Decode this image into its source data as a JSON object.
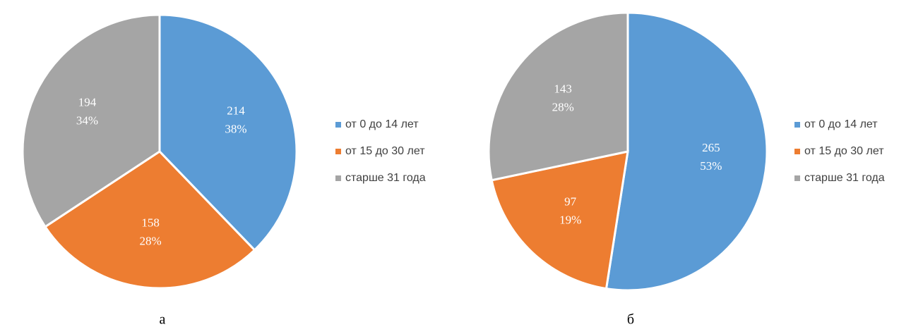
{
  "chart_data": [
    {
      "type": "pie",
      "caption": "а",
      "categories": [
        "от 0 до 14 лет",
        "от 15 до 30 лет",
        "старше 31 года"
      ],
      "values": [
        214,
        158,
        194
      ],
      "percent_labels": [
        "38%",
        "28%",
        "34%"
      ],
      "colors": [
        "#5b9bd5",
        "#ed7d31",
        "#a5a5a5"
      ]
    },
    {
      "type": "pie",
      "caption": "б",
      "categories": [
        "от 0 до 14 лет",
        "от 15 до 30 лет",
        "старше 31 года"
      ],
      "values": [
        265,
        97,
        143
      ],
      "percent_labels": [
        "53%",
        "19%",
        "28%"
      ],
      "colors": [
        "#5b9bd5",
        "#ed7d31",
        "#a5a5a5"
      ]
    }
  ]
}
